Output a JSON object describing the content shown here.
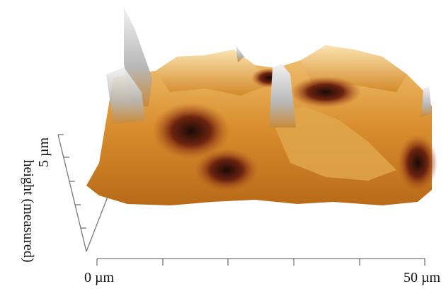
{
  "axes": {
    "z_label": "5 µm",
    "z_title": "height (measured)",
    "x_start": "0 µm",
    "x_end": "50 µm"
  }
}
